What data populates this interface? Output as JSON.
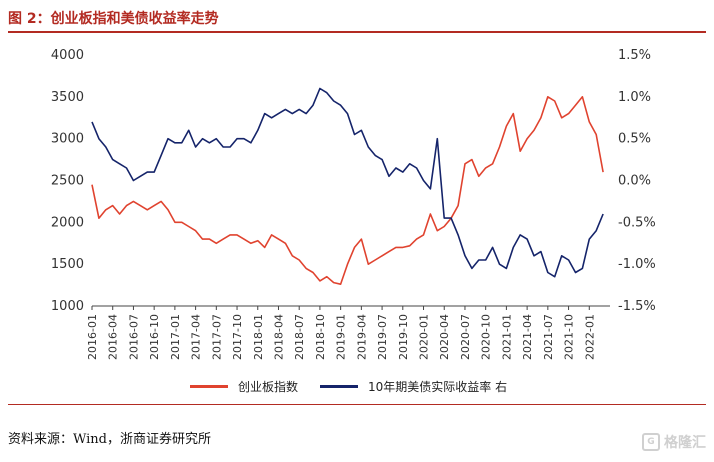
{
  "figure": {
    "title": "图 2：创业板指和美债收益率走势",
    "source": "资料来源：Wind，浙商证券研究所",
    "watermark": "格隆汇"
  },
  "chart_data": {
    "type": "line",
    "dual_axis": true,
    "grid": false,
    "legend_position": "bottom",
    "x_ticks": [
      "2016-01",
      "2016-04",
      "2016-07",
      "2016-10",
      "2017-01",
      "2017-04",
      "2017-07",
      "2017-10",
      "2018-01",
      "2018-04",
      "2018-07",
      "2018-10",
      "2019-01",
      "2019-04",
      "2019-07",
      "2019-10",
      "2020-01",
      "2020-04",
      "2020-07",
      "2020-10",
      "2021-01",
      "2021-04",
      "2021-07",
      "2021-10",
      "2022-01"
    ],
    "y_left": {
      "min": 1000,
      "max": 4000,
      "ticks": [
        "4000",
        "3500",
        "3000",
        "2500",
        "2000",
        "1500",
        "1000"
      ]
    },
    "y_right": {
      "min": -1.5,
      "max": 1.5,
      "ticks": [
        "1.5%",
        "1.0%",
        "0.5%",
        "0.0%",
        "-0.5%",
        "-1.0%",
        "-1.5%"
      ]
    },
    "series": [
      {
        "name": "创业板指数",
        "axis": "left",
        "color": "#e0432f",
        "points": [
          [
            "2016-01",
            2450
          ],
          [
            "2016-02",
            2050
          ],
          [
            "2016-03",
            2150
          ],
          [
            "2016-04",
            2200
          ],
          [
            "2016-05",
            2100
          ],
          [
            "2016-06",
            2200
          ],
          [
            "2016-07",
            2250
          ],
          [
            "2016-08",
            2200
          ],
          [
            "2016-09",
            2150
          ],
          [
            "2016-10",
            2200
          ],
          [
            "2016-11",
            2250
          ],
          [
            "2016-12",
            2150
          ],
          [
            "2017-01",
            2000
          ],
          [
            "2017-02",
            2000
          ],
          [
            "2017-03",
            1950
          ],
          [
            "2017-04",
            1900
          ],
          [
            "2017-05",
            1800
          ],
          [
            "2017-06",
            1800
          ],
          [
            "2017-07",
            1750
          ],
          [
            "2017-08",
            1800
          ],
          [
            "2017-09",
            1850
          ],
          [
            "2017-10",
            1850
          ],
          [
            "2017-11",
            1800
          ],
          [
            "2017-12",
            1750
          ],
          [
            "2018-01",
            1780
          ],
          [
            "2018-02",
            1700
          ],
          [
            "2018-03",
            1850
          ],
          [
            "2018-04",
            1800
          ],
          [
            "2018-05",
            1750
          ],
          [
            "2018-06",
            1600
          ],
          [
            "2018-07",
            1550
          ],
          [
            "2018-08",
            1450
          ],
          [
            "2018-09",
            1400
          ],
          [
            "2018-10",
            1300
          ],
          [
            "2018-11",
            1350
          ],
          [
            "2018-12",
            1280
          ],
          [
            "2019-01",
            1260
          ],
          [
            "2019-02",
            1500
          ],
          [
            "2019-03",
            1700
          ],
          [
            "2019-04",
            1800
          ],
          [
            "2019-05",
            1500
          ],
          [
            "2019-06",
            1550
          ],
          [
            "2019-07",
            1600
          ],
          [
            "2019-08",
            1650
          ],
          [
            "2019-09",
            1700
          ],
          [
            "2019-10",
            1700
          ],
          [
            "2019-11",
            1720
          ],
          [
            "2019-12",
            1800
          ],
          [
            "2020-01",
            1850
          ],
          [
            "2020-02",
            2100
          ],
          [
            "2020-03",
            1900
          ],
          [
            "2020-04",
            1950
          ],
          [
            "2020-05",
            2050
          ],
          [
            "2020-06",
            2200
          ],
          [
            "2020-07",
            2700
          ],
          [
            "2020-08",
            2750
          ],
          [
            "2020-09",
            2550
          ],
          [
            "2020-10",
            2650
          ],
          [
            "2020-11",
            2700
          ],
          [
            "2020-12",
            2900
          ],
          [
            "2021-01",
            3150
          ],
          [
            "2021-02",
            3300
          ],
          [
            "2021-03",
            2850
          ],
          [
            "2021-04",
            3000
          ],
          [
            "2021-05",
            3100
          ],
          [
            "2021-06",
            3250
          ],
          [
            "2021-07",
            3500
          ],
          [
            "2021-08",
            3450
          ],
          [
            "2021-09",
            3250
          ],
          [
            "2021-10",
            3300
          ],
          [
            "2021-11",
            3400
          ],
          [
            "2021-12",
            3500
          ],
          [
            "2022-01",
            3200
          ],
          [
            "2022-02",
            3050
          ],
          [
            "2022-03",
            2600
          ]
        ]
      },
      {
        "name": "10年期美债实际收益率 右",
        "axis": "right",
        "color": "#15246a",
        "points": [
          [
            "2016-01",
            0.7
          ],
          [
            "2016-02",
            0.5
          ],
          [
            "2016-03",
            0.4
          ],
          [
            "2016-04",
            0.25
          ],
          [
            "2016-05",
            0.2
          ],
          [
            "2016-06",
            0.15
          ],
          [
            "2016-07",
            0.0
          ],
          [
            "2016-08",
            0.05
          ],
          [
            "2016-09",
            0.1
          ],
          [
            "2016-10",
            0.1
          ],
          [
            "2016-11",
            0.3
          ],
          [
            "2016-12",
            0.5
          ],
          [
            "2017-01",
            0.45
          ],
          [
            "2017-02",
            0.45
          ],
          [
            "2017-03",
            0.6
          ],
          [
            "2017-04",
            0.4
          ],
          [
            "2017-05",
            0.5
          ],
          [
            "2017-06",
            0.45
          ],
          [
            "2017-07",
            0.5
          ],
          [
            "2017-08",
            0.4
          ],
          [
            "2017-09",
            0.4
          ],
          [
            "2017-10",
            0.5
          ],
          [
            "2017-11",
            0.5
          ],
          [
            "2017-12",
            0.45
          ],
          [
            "2018-01",
            0.6
          ],
          [
            "2018-02",
            0.8
          ],
          [
            "2018-03",
            0.75
          ],
          [
            "2018-04",
            0.8
          ],
          [
            "2018-05",
            0.85
          ],
          [
            "2018-06",
            0.8
          ],
          [
            "2018-07",
            0.85
          ],
          [
            "2018-08",
            0.8
          ],
          [
            "2018-09",
            0.9
          ],
          [
            "2018-10",
            1.1
          ],
          [
            "2018-11",
            1.05
          ],
          [
            "2018-12",
            0.95
          ],
          [
            "2019-01",
            0.9
          ],
          [
            "2019-02",
            0.8
          ],
          [
            "2019-03",
            0.55
          ],
          [
            "2019-04",
            0.6
          ],
          [
            "2019-05",
            0.4
          ],
          [
            "2019-06",
            0.3
          ],
          [
            "2019-07",
            0.25
          ],
          [
            "2019-08",
            0.05
          ],
          [
            "2019-09",
            0.15
          ],
          [
            "2019-10",
            0.1
          ],
          [
            "2019-11",
            0.2
          ],
          [
            "2019-12",
            0.15
          ],
          [
            "2020-01",
            0.0
          ],
          [
            "2020-02",
            -0.1
          ],
          [
            "2020-03",
            0.5
          ],
          [
            "2020-04",
            -0.45
          ],
          [
            "2020-05",
            -0.45
          ],
          [
            "2020-06",
            -0.65
          ],
          [
            "2020-07",
            -0.9
          ],
          [
            "2020-08",
            -1.05
          ],
          [
            "2020-09",
            -0.95
          ],
          [
            "2020-10",
            -0.95
          ],
          [
            "2020-11",
            -0.8
          ],
          [
            "2020-12",
            -1.0
          ],
          [
            "2021-01",
            -1.05
          ],
          [
            "2021-02",
            -0.8
          ],
          [
            "2021-03",
            -0.65
          ],
          [
            "2021-04",
            -0.7
          ],
          [
            "2021-05",
            -0.9
          ],
          [
            "2021-06",
            -0.85
          ],
          [
            "2021-07",
            -1.1
          ],
          [
            "2021-08",
            -1.15
          ],
          [
            "2021-09",
            -0.9
          ],
          [
            "2021-10",
            -0.95
          ],
          [
            "2021-11",
            -1.1
          ],
          [
            "2021-12",
            -1.05
          ],
          [
            "2022-01",
            -0.7
          ],
          [
            "2022-02",
            -0.6
          ],
          [
            "2022-03",
            -0.4
          ]
        ]
      }
    ]
  }
}
